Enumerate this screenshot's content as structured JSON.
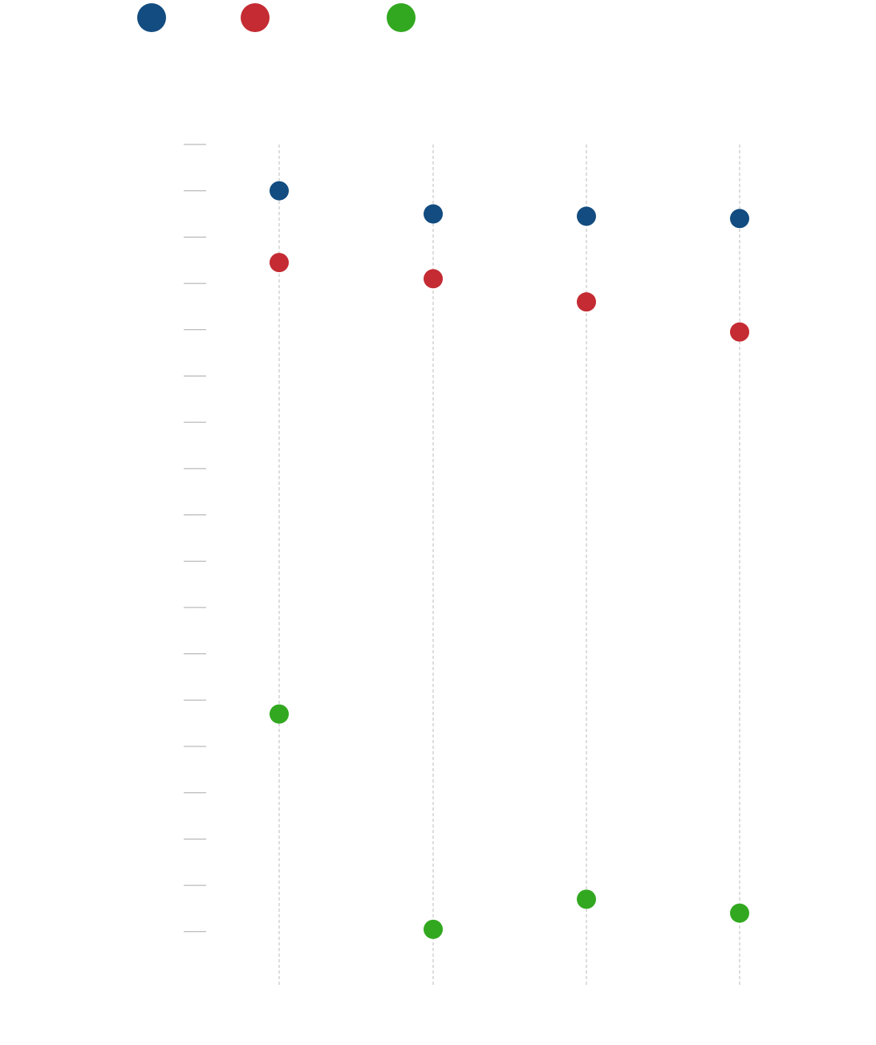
{
  "chart_data": {
    "type": "dot",
    "categories": [
      null,
      null,
      null,
      null
    ],
    "series": [
      {
        "color": "#124c80",
        "values": [
          16.0,
          15.5,
          15.45,
          15.4
        ]
      },
      {
        "color": "#c42b33",
        "values": [
          14.45,
          14.1,
          13.6,
          12.95
        ]
      },
      {
        "color": "#32a820",
        "values": [
          4.7,
          0.05,
          0.7,
          0.4
        ]
      }
    ],
    "ylim": [
      -1.2,
      17
    ],
    "yticks": [
      0,
      1,
      2,
      3,
      4,
      5,
      6,
      7,
      8,
      9,
      10,
      11,
      12,
      13,
      14,
      15,
      16,
      17
    ]
  }
}
